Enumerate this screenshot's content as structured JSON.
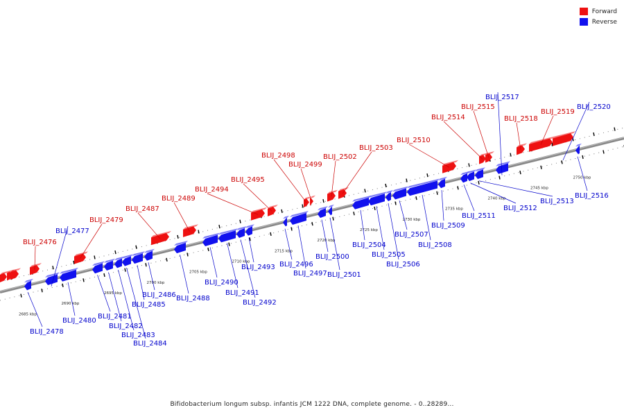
{
  "legend": [
    {
      "label": "Forward",
      "color": "#ee1111"
    },
    {
      "label": "Reverse",
      "color": "#1111ee"
    }
  ],
  "caption": "Bifidobacterium longum subsp. infantis JCM 1222 DNA, complete genome. - 0..28289...",
  "colors": {
    "forward": "#ee1111",
    "reverse": "#1111ee",
    "forward_label": "#cc0000",
    "reverse_label": "#0000cc",
    "backbone": "#888888"
  },
  "ticks": [
    {
      "kbp": 2685,
      "label": "2685 kbp"
    },
    {
      "kbp": 2690,
      "label": "2690 kbp"
    },
    {
      "kbp": 2695,
      "label": "2695 kbp"
    },
    {
      "kbp": 2700,
      "label": "2700 kbp"
    },
    {
      "kbp": 2705,
      "label": "2705 kbp"
    },
    {
      "kbp": 2710,
      "label": "2710 kbp"
    },
    {
      "kbp": 2715,
      "label": "2715 kbp"
    },
    {
      "kbp": 2720,
      "label": "2720 kbp"
    },
    {
      "kbp": 2725,
      "label": "2725 kbp"
    },
    {
      "kbp": 2730,
      "label": "2730 kbp"
    },
    {
      "kbp": 2735,
      "label": "2735 kbp"
    },
    {
      "kbp": 2740,
      "label": "2740 kbp"
    },
    {
      "kbp": 2745,
      "label": "2745 kbp"
    },
    {
      "kbp": 2750,
      "label": "2750 kbp"
    }
  ],
  "genes": [
    {
      "name": "BLIJ_2476",
      "strand": "forward"
    },
    {
      "name": "BLIJ_2477",
      "strand": "reverse"
    },
    {
      "name": "BLIJ_2478",
      "strand": "reverse"
    },
    {
      "name": "BLIJ_2479",
      "strand": "forward"
    },
    {
      "name": "BLIJ_2480",
      "strand": "reverse"
    },
    {
      "name": "BLIJ_2481",
      "strand": "reverse"
    },
    {
      "name": "BLIJ_2482",
      "strand": "reverse"
    },
    {
      "name": "BLIJ_2483",
      "strand": "reverse"
    },
    {
      "name": "BLIJ_2484",
      "strand": "reverse"
    },
    {
      "name": "BLIJ_2485",
      "strand": "reverse"
    },
    {
      "name": "BLIJ_2486",
      "strand": "reverse"
    },
    {
      "name": "BLIJ_2487",
      "strand": "forward"
    },
    {
      "name": "BLIJ_2488",
      "strand": "reverse"
    },
    {
      "name": "BLIJ_2489",
      "strand": "forward"
    },
    {
      "name": "BLIJ_2490",
      "strand": "reverse"
    },
    {
      "name": "BLIJ_2491",
      "strand": "reverse"
    },
    {
      "name": "BLIJ_2492",
      "strand": "reverse"
    },
    {
      "name": "BLIJ_2493",
      "strand": "reverse"
    },
    {
      "name": "BLIJ_2494",
      "strand": "forward"
    },
    {
      "name": "BLIJ_2495",
      "strand": "forward"
    },
    {
      "name": "BLIJ_2496",
      "strand": "reverse"
    },
    {
      "name": "BLIJ_2497",
      "strand": "reverse"
    },
    {
      "name": "BLIJ_2498",
      "strand": "forward"
    },
    {
      "name": "BLIJ_2499",
      "strand": "forward"
    },
    {
      "name": "BLIJ_2500",
      "strand": "reverse"
    },
    {
      "name": "BLIJ_2501",
      "strand": "reverse"
    },
    {
      "name": "BLIJ_2502",
      "strand": "forward"
    },
    {
      "name": "BLIJ_2503",
      "strand": "forward"
    },
    {
      "name": "BLIJ_2504",
      "strand": "reverse"
    },
    {
      "name": "BLIJ_2505",
      "strand": "reverse"
    },
    {
      "name": "BLIJ_2506",
      "strand": "reverse"
    },
    {
      "name": "BLIJ_2507",
      "strand": "reverse"
    },
    {
      "name": "BLIJ_2508",
      "strand": "reverse"
    },
    {
      "name": "BLIJ_2509",
      "strand": "reverse"
    },
    {
      "name": "BLIJ_2510",
      "strand": "forward"
    },
    {
      "name": "BLIJ_2511",
      "strand": "reverse"
    },
    {
      "name": "BLIJ_2512",
      "strand": "reverse"
    },
    {
      "name": "BLIJ_2513",
      "strand": "reverse"
    },
    {
      "name": "BLIJ_2514",
      "strand": "forward"
    },
    {
      "name": "BLIJ_2515",
      "strand": "forward"
    },
    {
      "name": "BLIJ_2516",
      "strand": "reverse"
    },
    {
      "name": "BLIJ_2517",
      "strand": "reverse"
    },
    {
      "name": "BLIJ_2518",
      "strand": "forward"
    },
    {
      "name": "BLIJ_2519",
      "strand": "forward"
    },
    {
      "name": "BLIJ_2520",
      "strand": "reverse"
    }
  ]
}
